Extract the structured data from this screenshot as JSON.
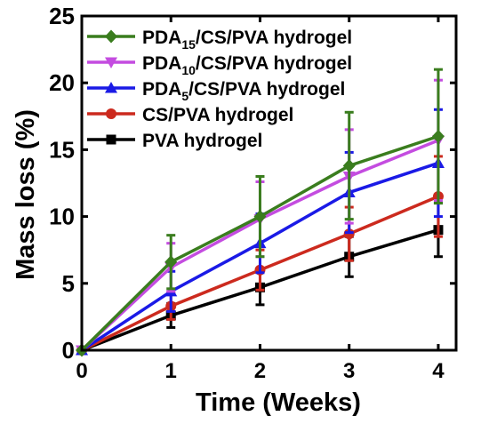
{
  "chart_data": {
    "type": "line",
    "title": "",
    "xlabel": "Time (Weeks)",
    "ylabel": "Mass loss (%)",
    "xlim": [
      0,
      4.2
    ],
    "ylim": [
      0,
      25
    ],
    "xticks": [
      0,
      1,
      2,
      3,
      4
    ],
    "yticks": [
      0,
      5,
      10,
      15,
      20,
      25
    ],
    "grid": false,
    "legend_position": "top-left",
    "x": [
      0,
      1,
      2,
      3,
      4
    ],
    "series": [
      {
        "name": "PDA15/CS/PVA hydrogel",
        "label_parts": [
          "PDA",
          "15",
          "/CS/PVA hydrogel"
        ],
        "color": "#3a7d1e",
        "marker": "diamond",
        "values": [
          0,
          6.6,
          10.0,
          13.8,
          16.0
        ],
        "errors": [
          0,
          2.0,
          3.0,
          4.0,
          5.0
        ]
      },
      {
        "name": "PDA10/CS/PVA hydrogel",
        "label_parts": [
          "PDA",
          "10",
          "/CS/PVA hydrogel"
        ],
        "color": "#c44ce0",
        "marker": "triangle-down",
        "values": [
          0,
          6.2,
          9.8,
          13.0,
          15.7
        ],
        "errors": [
          0,
          1.8,
          2.8,
          3.5,
          4.5
        ]
      },
      {
        "name": "PDA5/CS/PVA hydrogel",
        "label_parts": [
          "PDA",
          "5",
          "/CS/PVA hydrogel"
        ],
        "color": "#1a1ae6",
        "marker": "triangle-up",
        "values": [
          0,
          4.4,
          8.0,
          11.8,
          14.0
        ],
        "errors": [
          0,
          1.5,
          2.2,
          3.0,
          4.0
        ]
      },
      {
        "name": "CS/PVA hydrogel",
        "label_parts": [
          "CS/PVA hydrogel",
          "",
          ""
        ],
        "color": "#cc2a1e",
        "marker": "circle",
        "values": [
          0,
          3.3,
          6.0,
          8.7,
          11.5
        ],
        "errors": [
          0,
          1.0,
          1.5,
          2.0,
          3.0
        ]
      },
      {
        "name": "PVA hydrogel",
        "label_parts": [
          "PVA hydrogel",
          "",
          ""
        ],
        "color": "#000000",
        "marker": "square",
        "values": [
          0,
          2.6,
          4.7,
          7.0,
          9.0
        ],
        "errors": [
          0,
          0.9,
          1.3,
          1.5,
          2.0
        ]
      }
    ]
  }
}
